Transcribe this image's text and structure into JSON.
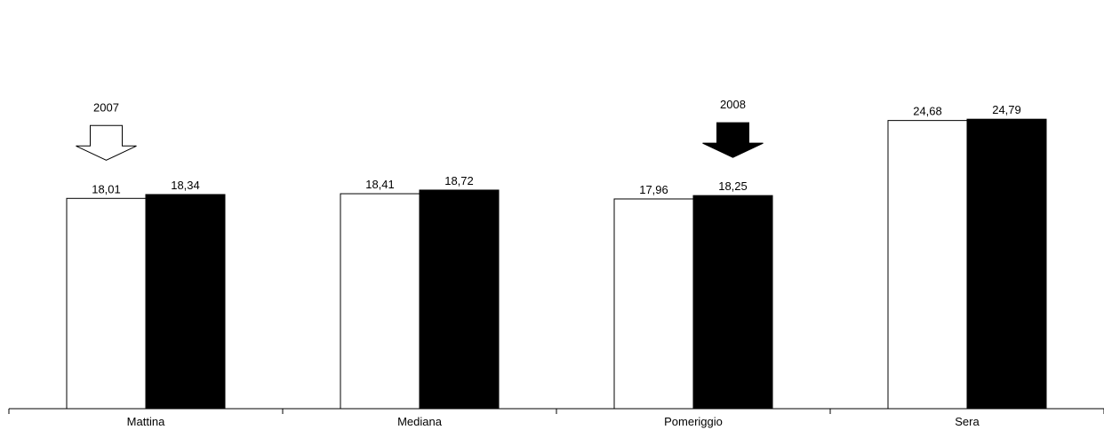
{
  "chart_data": {
    "type": "bar",
    "categories": [
      "Mattina",
      "Mediana",
      "Pomeriggio",
      "Sera"
    ],
    "series": [
      {
        "values": [
          18.01,
          18.41,
          17.96,
          24.68
        ],
        "labels": [
          "18,01",
          "18,41",
          "17,96",
          "24,68"
        ],
        "color": "#ffffff",
        "stroke": "#000000"
      },
      {
        "values": [
          18.34,
          18.72,
          18.25,
          24.79
        ],
        "labels": [
          "18,34",
          "18,72",
          "18,25",
          "24,79"
        ],
        "color": "#000000",
        "stroke": "#000000"
      }
    ],
    "annotations": [
      {
        "text": "2007",
        "category": "Mattina",
        "series": 0,
        "arrow": "down-hollow"
      },
      {
        "text": "2008",
        "category": "Pomeriggio",
        "series": 1,
        "arrow": "down-filled"
      }
    ],
    "ylim": [
      0,
      35
    ],
    "grid": false,
    "legend": "none"
  }
}
